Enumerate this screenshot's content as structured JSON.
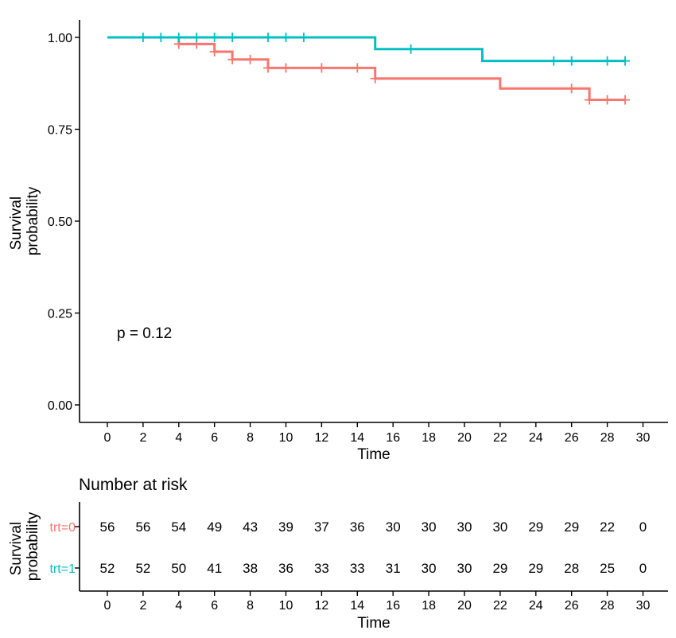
{
  "chart_data": [
    {
      "type": "line",
      "subtype": "kaplan-meier step",
      "ylabel": "Survival\nprobability",
      "xlabel": "Time",
      "xlim": [
        -1.5,
        31.5
      ],
      "ylim": [
        -0.05,
        1.05
      ],
      "x_ticks": [
        "0",
        "2",
        "4",
        "6",
        "8",
        "10",
        "12",
        "14",
        "16",
        "18",
        "20",
        "22",
        "24",
        "26",
        "28",
        "30"
      ],
      "y_ticks": [
        "0.00",
        "0.25",
        "0.50",
        "0.75",
        "1.00"
      ],
      "grid": false,
      "annotation": "p = 0.12",
      "series": [
        {
          "strata": "trt=0",
          "color": "#F8766D",
          "steps": [
            [
              0,
              1.0
            ],
            [
              4,
              0.982
            ],
            [
              6,
              0.961
            ],
            [
              7,
              0.94
            ],
            [
              9,
              0.917
            ],
            [
              15,
              0.888
            ],
            [
              22,
              0.861
            ],
            [
              27,
              0.83
            ],
            [
              29,
              0.83
            ]
          ],
          "censor_x": [
            4,
            5,
            6,
            7,
            8,
            9,
            10,
            12,
            14,
            15,
            26,
            27,
            28,
            29
          ]
        },
        {
          "strata": "trt=1",
          "color": "#00BFC4",
          "steps": [
            [
              0,
              1.0
            ],
            [
              15,
              0.968
            ],
            [
              21,
              0.936
            ],
            [
              29,
              0.936
            ]
          ],
          "censor_x": [
            2,
            3,
            4,
            5,
            6,
            7,
            9,
            10,
            11,
            17,
            25,
            26,
            28,
            29
          ]
        }
      ]
    },
    {
      "type": "table",
      "title": "Number at risk",
      "ylabel": "Survival\nprobability",
      "xlabel": "Time",
      "x_ticks": [
        "0",
        "2",
        "4",
        "6",
        "8",
        "10",
        "12",
        "14",
        "16",
        "18",
        "20",
        "22",
        "24",
        "26",
        "28",
        "30"
      ],
      "rows": [
        {
          "label": "trt=0",
          "color": "#F8766D",
          "values": [
            56,
            56,
            54,
            49,
            43,
            39,
            37,
            36,
            30,
            30,
            30,
            30,
            29,
            29,
            22,
            0
          ]
        },
        {
          "label": "trt=1",
          "color": "#00BFC4",
          "values": [
            52,
            52,
            50,
            41,
            38,
            36,
            33,
            33,
            31,
            30,
            30,
            29,
            29,
            28,
            25,
            0
          ]
        }
      ]
    }
  ]
}
